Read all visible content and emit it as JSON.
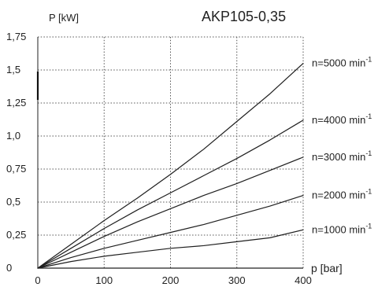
{
  "chart_data": {
    "type": "line",
    "title": "AKP105-0,35",
    "xlabel": "p [bar]",
    "ylabel": "P [kW]",
    "xlim": [
      0,
      400
    ],
    "ylim": [
      0,
      1.75
    ],
    "x_ticks": [
      "0",
      "100",
      "200",
      "300",
      "400"
    ],
    "y_ticks": [
      "0",
      "0,25",
      "0,5",
      "0,75",
      "1,0",
      "1,25",
      "1,5",
      "1,75"
    ],
    "grid": true,
    "legend": "right-side labels",
    "series": [
      {
        "name": "n=1000 min",
        "superscript": "-1",
        "x": [
          0,
          50,
          100,
          150,
          200,
          250,
          300,
          350,
          400
        ],
        "y": [
          0,
          0.05,
          0.09,
          0.12,
          0.15,
          0.17,
          0.2,
          0.23,
          0.29
        ]
      },
      {
        "name": "n=2000 min",
        "superscript": "-1",
        "x": [
          0,
          50,
          100,
          150,
          200,
          250,
          300,
          350,
          400
        ],
        "y": [
          0,
          0.08,
          0.15,
          0.21,
          0.27,
          0.33,
          0.4,
          0.47,
          0.55
        ]
      },
      {
        "name": "n=3000 min",
        "superscript": "-1",
        "x": [
          0,
          50,
          100,
          150,
          200,
          250,
          300,
          350,
          400
        ],
        "y": [
          0,
          0.12,
          0.24,
          0.35,
          0.45,
          0.55,
          0.64,
          0.74,
          0.84
        ]
      },
      {
        "name": "n=4000 min",
        "superscript": "-1",
        "x": [
          0,
          50,
          100,
          150,
          200,
          250,
          300,
          350,
          400
        ],
        "y": [
          0,
          0.15,
          0.3,
          0.44,
          0.57,
          0.7,
          0.83,
          0.97,
          1.12
        ]
      },
      {
        "name": "n=5000 min",
        "superscript": "-1",
        "x": [
          0,
          50,
          100,
          150,
          200,
          250,
          300,
          350,
          400
        ],
        "y": [
          0,
          0.18,
          0.36,
          0.53,
          0.71,
          0.9,
          1.11,
          1.32,
          1.55
        ]
      }
    ]
  }
}
